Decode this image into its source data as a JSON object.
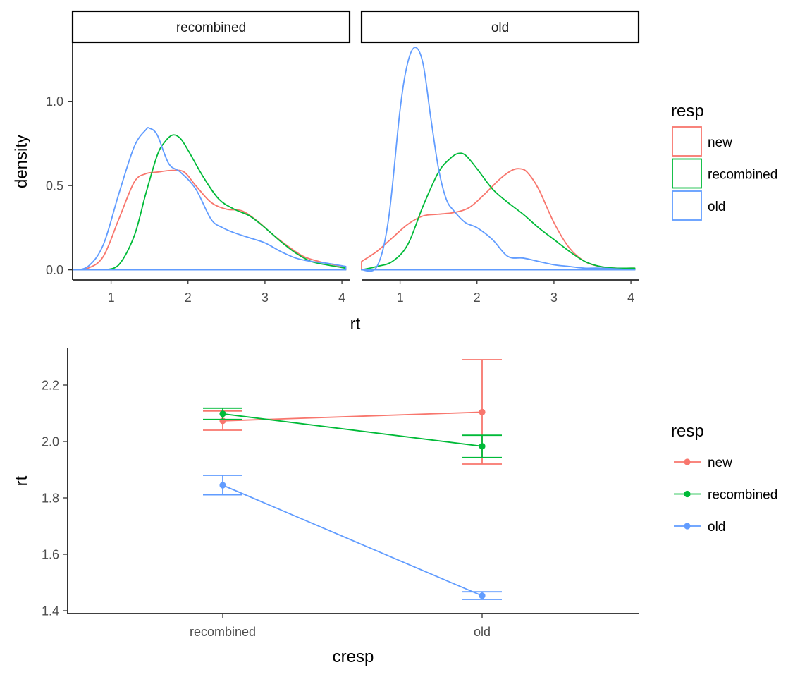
{
  "colors": {
    "new": "#F8766D",
    "recombined": "#00BA38",
    "old": "#619CFF"
  },
  "chart_data": [
    {
      "type": "line",
      "subtype": "density",
      "facets": [
        "recombined",
        "old"
      ],
      "xlabel": "rt",
      "ylabel": "density",
      "xlim": [
        0.5,
        4.1
      ],
      "ylim": [
        -0.06,
        1.35
      ],
      "xticks": [
        1,
        2,
        3,
        4
      ],
      "yticks": [
        0.0,
        0.5,
        1.0
      ],
      "ytick_labels": [
        "0.0",
        "0.5",
        "1.0"
      ],
      "legend": {
        "title": "resp",
        "position": "right",
        "entries": [
          "new",
          "recombined",
          "old"
        ]
      },
      "panels": [
        {
          "facet": "recombined",
          "series": [
            {
              "name": "new",
              "color": "#F8766D",
              "x": [
                0.5,
                0.7,
                0.9,
                1.1,
                1.3,
                1.45,
                1.6,
                1.8,
                1.95,
                2.1,
                2.3,
                2.5,
                2.7,
                2.9,
                3.1,
                3.3,
                3.5,
                3.7,
                3.9,
                4.05
              ],
              "y": [
                0.0,
                0.01,
                0.08,
                0.3,
                0.52,
                0.57,
                0.58,
                0.59,
                0.58,
                0.5,
                0.4,
                0.36,
                0.35,
                0.29,
                0.21,
                0.14,
                0.08,
                0.05,
                0.03,
                0.02
              ]
            },
            {
              "name": "recombined",
              "color": "#00BA38",
              "x": [
                0.9,
                1.1,
                1.3,
                1.45,
                1.6,
                1.7,
                1.8,
                1.9,
                2.0,
                2.2,
                2.4,
                2.6,
                2.8,
                3.0,
                3.2,
                3.4,
                3.6,
                3.8,
                4.05
              ],
              "y": [
                0.0,
                0.03,
                0.2,
                0.45,
                0.68,
                0.76,
                0.8,
                0.78,
                0.71,
                0.55,
                0.42,
                0.36,
                0.32,
                0.25,
                0.17,
                0.1,
                0.05,
                0.03,
                0.01
              ]
            },
            {
              "name": "old",
              "color": "#619CFF",
              "x": [
                0.5,
                0.7,
                0.9,
                1.1,
                1.3,
                1.45,
                1.5,
                1.6,
                1.75,
                1.9,
                2.1,
                2.3,
                2.45,
                2.6,
                2.8,
                3.0,
                3.2,
                3.4,
                3.6,
                3.8,
                4.05
              ],
              "y": [
                0.0,
                0.02,
                0.15,
                0.45,
                0.73,
                0.83,
                0.84,
                0.8,
                0.63,
                0.58,
                0.48,
                0.3,
                0.25,
                0.22,
                0.19,
                0.16,
                0.11,
                0.07,
                0.05,
                0.04,
                0.02
              ]
            }
          ]
        },
        {
          "facet": "old",
          "series": [
            {
              "name": "new",
              "color": "#F8766D",
              "x": [
                0.5,
                0.7,
                0.9,
                1.1,
                1.3,
                1.5,
                1.7,
                1.9,
                2.1,
                2.3,
                2.45,
                2.55,
                2.65,
                2.8,
                3.0,
                3.2,
                3.4,
                3.6,
                3.8,
                4.05
              ],
              "y": [
                0.05,
                0.11,
                0.19,
                0.27,
                0.32,
                0.33,
                0.34,
                0.37,
                0.45,
                0.54,
                0.59,
                0.6,
                0.58,
                0.48,
                0.28,
                0.13,
                0.05,
                0.02,
                0.01,
                0.01
              ]
            },
            {
              "name": "recombined",
              "color": "#00BA38",
              "x": [
                0.5,
                0.7,
                0.9,
                1.1,
                1.3,
                1.5,
                1.65,
                1.75,
                1.85,
                2.0,
                2.2,
                2.4,
                2.6,
                2.8,
                3.0,
                3.2,
                3.4,
                3.6,
                3.8,
                4.05
              ],
              "y": [
                0.0,
                0.02,
                0.05,
                0.15,
                0.38,
                0.58,
                0.66,
                0.69,
                0.68,
                0.6,
                0.48,
                0.4,
                0.33,
                0.25,
                0.18,
                0.11,
                0.05,
                0.02,
                0.01,
                0.01
              ]
            },
            {
              "name": "old",
              "color": "#619CFF",
              "x": [
                0.5,
                0.7,
                0.85,
                1.0,
                1.1,
                1.2,
                1.3,
                1.4,
                1.5,
                1.6,
                1.7,
                1.85,
                2.0,
                2.2,
                2.4,
                2.6,
                2.8,
                3.0,
                3.2,
                3.4,
                3.6,
                4.05
              ],
              "y": [
                0.0,
                0.02,
                0.3,
                0.95,
                1.23,
                1.32,
                1.22,
                0.9,
                0.6,
                0.42,
                0.35,
                0.28,
                0.25,
                0.18,
                0.08,
                0.07,
                0.05,
                0.03,
                0.02,
                0.01,
                0.01,
                0.0
              ]
            }
          ]
        }
      ]
    },
    {
      "type": "line",
      "subtype": "point-errorbar",
      "categories": [
        "recombined",
        "old"
      ],
      "xlabel": "cresp",
      "ylabel": "rt",
      "ylim": [
        1.39,
        2.33
      ],
      "yticks": [
        1.4,
        1.6,
        1.8,
        2.0,
        2.2
      ],
      "ytick_labels": [
        "1.4",
        "1.6",
        "1.8",
        "2.0",
        "2.2"
      ],
      "legend": {
        "title": "resp",
        "position": "right",
        "entries": [
          "new",
          "recombined",
          "old"
        ]
      },
      "series": [
        {
          "name": "new",
          "color": "#F8766D",
          "values": [
            2.073,
            2.104
          ],
          "lower": [
            2.04,
            1.92
          ],
          "upper": [
            2.108,
            2.29
          ]
        },
        {
          "name": "recombined",
          "color": "#00BA38",
          "values": [
            2.098,
            1.983
          ],
          "lower": [
            2.078,
            1.943
          ],
          "upper": [
            2.118,
            2.022
          ]
        },
        {
          "name": "old",
          "color": "#619CFF",
          "values": [
            1.845,
            1.453
          ],
          "lower": [
            1.811,
            1.44
          ],
          "upper": [
            1.88,
            1.467
          ]
        }
      ]
    }
  ]
}
